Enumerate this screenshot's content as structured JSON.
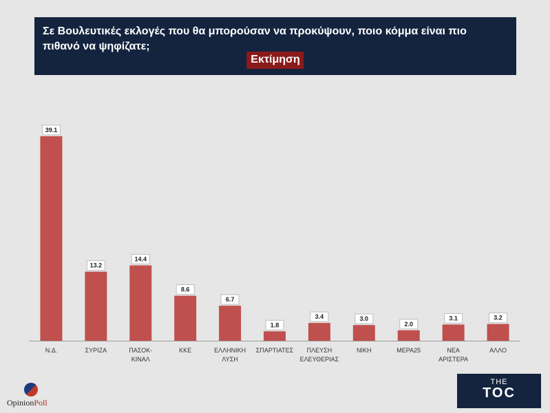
{
  "header": {
    "question": "Σε Βουλευτικές εκλογές που θα μπορούσαν να προκύψουν, ποιο κόμμα είναι πιο πιθανό να ψηφίζατε;",
    "badge": "Εκτίμηση"
  },
  "chart_data": {
    "type": "bar",
    "title": "Σε Βουλευτικές εκλογές που θα μπορούσαν να προκύψουν, ποιο κόμμα είναι πιο πιθανό να ψηφίζατε;",
    "subtitle": "Εκτίμηση",
    "categories": [
      [
        "Ν.Δ."
      ],
      [
        "ΣΥΡΙΖΑ"
      ],
      [
        "ΠΑΣΟΚ-",
        "ΚΙΝΑΛ"
      ],
      [
        "ΚΚΕ"
      ],
      [
        "ΕΛΛΗΝΙΚΗ",
        "ΛΥΣΗ"
      ],
      [
        "ΣΠΑΡΤΙΑΤΕΣ"
      ],
      [
        "ΠΛΕΥΣΗ",
        "ΕΛΕΥΘΕΡΙΑΣ"
      ],
      [
        "ΝΙΚΗ"
      ],
      [
        "ΜΕΡΑ25"
      ],
      [
        "ΝΕΑ",
        "ΑΡΙΣΤΕΡΑ"
      ],
      [
        "ΑΛΛΟ"
      ]
    ],
    "values": [
      39.1,
      13.2,
      14.4,
      8.6,
      6.7,
      1.8,
      3.4,
      3.0,
      2.0,
      3.1,
      3.2
    ],
    "value_labels": [
      "39.1",
      "13.2",
      "14.4",
      "8.6",
      "6.7",
      "1.8",
      "3.4",
      "3.0",
      "2.0",
      "3.1",
      "3.2"
    ],
    "ylim": [
      0,
      40
    ],
    "bar_color": "#c0504d",
    "grid": false
  },
  "logos": {
    "opinionpoll_a": "Opinion",
    "opinionpoll_b": "Poll",
    "toc_top": "THE",
    "toc_main": "TOC"
  },
  "colors": {
    "header_bg": "#14243f",
    "badge_bg": "#8b1a1a",
    "page_bg": "#e6e6e6"
  }
}
